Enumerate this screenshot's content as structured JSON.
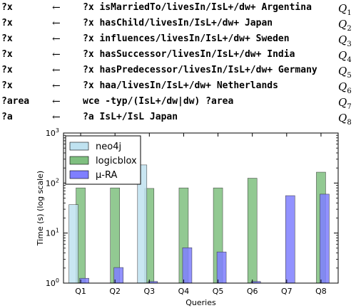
{
  "queries": [
    {
      "var": "?x",
      "arrow": "←",
      "expr": "?x isMarriedTo/livesIn/IsL+/dw+ Argentina",
      "label": "Q",
      "sub": "1"
    },
    {
      "var": "?x",
      "arrow": "←",
      "expr": "?x hasChild/livesIn/IsL+/dw+ Japan",
      "label": "Q",
      "sub": "2"
    },
    {
      "var": "?x",
      "arrow": "←",
      "expr": "?x influences/livesIn/IsL+/dw+ Sweden",
      "label": "Q",
      "sub": "3"
    },
    {
      "var": "?x",
      "arrow": "←",
      "expr": "?x hasSuccessor/livesIn/IsL+/dw+ India",
      "label": "Q",
      "sub": "4"
    },
    {
      "var": "?x",
      "arrow": "←",
      "expr": "?x hasPredecessor/livesIn/IsL+/dw+ Germany",
      "label": "Q",
      "sub": "5"
    },
    {
      "var": "?x",
      "arrow": "←",
      "expr": "?x haa/livesIn/IsL+/dw+ Netherlands",
      "label": "Q",
      "sub": "6"
    },
    {
      "var": "?area",
      "arrow": "←",
      "expr": "wce -typ/(IsL+/dw|dw) ?area",
      "label": "Q",
      "sub": "7"
    },
    {
      "var": "?a",
      "arrow": "←",
      "expr": "?a IsL+/IsL Japan",
      "label": "Q",
      "sub": "8"
    }
  ],
  "chart_data": {
    "type": "bar",
    "xlabel": "Queries",
    "ylabel": "Time (s) (log scale)",
    "yscale": "log",
    "ylim": [
      1,
      1000
    ],
    "yticks": [
      {
        "base": "10",
        "exp": "0"
      },
      {
        "base": "10",
        "exp": "1"
      },
      {
        "base": "10",
        "exp": "2"
      },
      {
        "base": "10",
        "exp": "3"
      }
    ],
    "categories": [
      "Q1",
      "Q2",
      "Q3",
      "Q4",
      "Q5",
      "Q6",
      "Q7",
      "Q8"
    ],
    "series": [
      {
        "name": "neo4j",
        "color": "#bfe2f0",
        "values": [
          37,
          null,
          230,
          null,
          null,
          null,
          null,
          null
        ]
      },
      {
        "name": "logicblox",
        "color": "#7fbf7f",
        "values": [
          80,
          80,
          78,
          80,
          80,
          125,
          null,
          165
        ]
      },
      {
        "name": "μ-RA",
        "color": "#7f7fff",
        "values": [
          1.25,
          2.05,
          1.08,
          5.1,
          4.2,
          1.08,
          56,
          60
        ]
      }
    ],
    "legend": {
      "placement": "top-left"
    },
    "grid": false
  }
}
